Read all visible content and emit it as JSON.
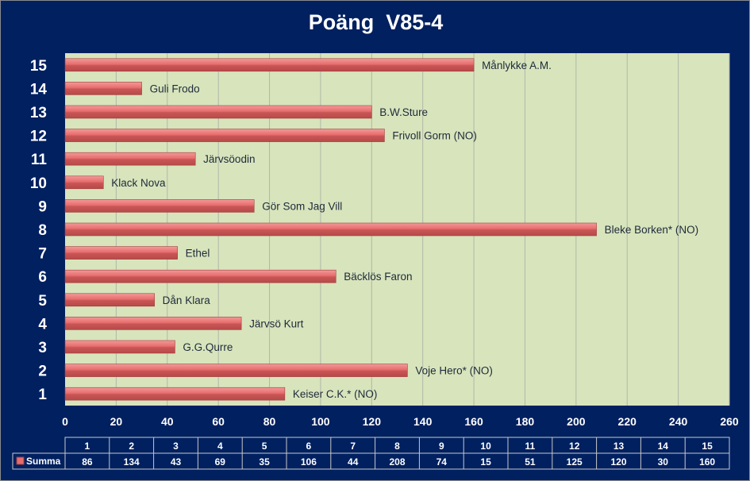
{
  "chart_data": {
    "type": "bar",
    "orientation": "horizontal",
    "title": "Poäng  V85-4",
    "categories": [
      "1",
      "2",
      "3",
      "4",
      "5",
      "6",
      "7",
      "8",
      "9",
      "10",
      "11",
      "12",
      "13",
      "14",
      "15"
    ],
    "bar_labels": [
      "Keiser C.K.* (NO)",
      "Voje Hero* (NO)",
      "G.G.Qurre",
      "Järvsö Kurt",
      "Dån Klara",
      "Bäcklös Faron",
      "Ethel",
      "Bleke Borken* (NO)",
      "Gör Som Jag Vill",
      "Klack Nova",
      "Järvsöodin",
      "Frivoll Gorm  (NO)",
      "B.W.Sture",
      "Guli Frodo",
      "Månlykke A.M."
    ],
    "series": [
      {
        "name": "Summa",
        "values": [
          86,
          134,
          43,
          69,
          35,
          106,
          44,
          208,
          74,
          15,
          51,
          125,
          120,
          30,
          160
        ]
      }
    ],
    "xlim": [
      0,
      260
    ],
    "xticks": [
      0,
      20,
      40,
      60,
      80,
      100,
      120,
      140,
      160,
      180,
      200,
      220,
      240,
      260
    ],
    "grid": true,
    "data_table": true,
    "colors": {
      "background": "#002060",
      "plot": "#d8e4bc",
      "bar": "#e86c6c",
      "bar_dark": "#b84848",
      "grid": "#b0b8a8"
    }
  }
}
